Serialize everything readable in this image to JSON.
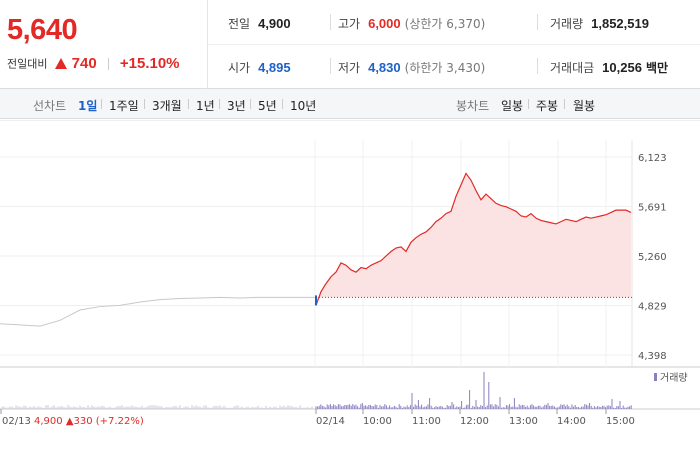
{
  "quote": {
    "current_price": "5,640",
    "change_label": "전일대비",
    "change_amount": "740",
    "change_rate": "+15.10%",
    "prev_close_label": "전일",
    "prev_close": "4,900",
    "high_label": "고가",
    "high": "6,000",
    "upper_limit": "(상한가 6,370)",
    "volume_label": "거래량",
    "volume": "1,852,519",
    "open_label": "시가",
    "open": "4,895",
    "low_label": "저가",
    "low": "4,830",
    "lower_limit": "(하한가 3,430)",
    "amount_label": "거래대금",
    "amount": "10,256",
    "amount_unit": "백만"
  },
  "toolbar": {
    "line_label": "선차트",
    "line_periods": [
      "1일",
      "1주일",
      "3개월",
      "1년",
      "3년",
      "5년",
      "10년"
    ],
    "active_period": "1일",
    "candle_label": "봉차트",
    "candle_periods": [
      "일봉",
      "주봉",
      "월봉"
    ]
  },
  "colors": {
    "up": "#e22926",
    "down": "#1f61c8",
    "prev_day_line": "#c8c8c8",
    "volume_bar": "#8a7fc0",
    "area_fill": "#fbe3e3"
  },
  "chart_data": {
    "type": "line",
    "y_ticks": [
      "6,123",
      "5,691",
      "5,260",
      "4,829",
      "4,398"
    ],
    "ylim": [
      4398,
      6123
    ],
    "x_ticks": [
      "02/13",
      "02/14",
      "10:00",
      "11:00",
      "12:00",
      "13:00",
      "14:00",
      "15:00"
    ],
    "prev_day_summary": {
      "date": "02/13",
      "close": "4,900",
      "change": "330",
      "rate": "(+7.22%)"
    },
    "reference_price": 4900,
    "volume_legend": "거래량",
    "series": [
      {
        "name": "02/13",
        "x": [
          0,
          20,
          40,
          60,
          80,
          100,
          120,
          140,
          160,
          180,
          200,
          220,
          240,
          260,
          280,
          300,
          315
        ],
        "values": [
          4670,
          4660,
          4650,
          4700,
          4790,
          4820,
          4830,
          4860,
          4880,
          4890,
          4895,
          4900,
          4895,
          4900,
          4900,
          4900,
          4900
        ]
      },
      {
        "name": "02/14",
        "x": [
          0,
          5,
          10,
          15,
          20,
          25,
          30,
          35,
          40,
          45,
          50,
          55,
          60,
          65,
          70,
          75,
          80,
          85,
          90,
          95,
          100,
          105,
          110,
          115,
          120,
          125,
          130,
          135,
          140,
          145,
          150,
          155,
          160,
          165,
          170,
          175,
          180,
          185,
          190,
          195,
          200,
          205,
          210,
          215,
          220,
          225,
          230,
          235,
          240,
          245,
          250,
          255,
          260,
          265,
          270,
          275,
          280,
          285,
          290,
          295,
          300,
          305,
          310,
          315
        ],
        "values": [
          4830,
          4950,
          5020,
          5080,
          5120,
          5200,
          5180,
          5140,
          5120,
          5160,
          5150,
          5180,
          5200,
          5220,
          5260,
          5300,
          5330,
          5340,
          5300,
          5380,
          5420,
          5450,
          5470,
          5510,
          5560,
          5590,
          5630,
          5650,
          5780,
          5880,
          5980,
          5920,
          5830,
          5750,
          5800,
          5760,
          5720,
          5700,
          5690,
          5670,
          5650,
          5610,
          5600,
          5630,
          5590,
          5570,
          5560,
          5550,
          5540,
          5560,
          5580,
          5570,
          5560,
          5580,
          5600,
          5590,
          5600,
          5610,
          5620,
          5640,
          5660,
          5660,
          5660,
          5640
        ]
      }
    ]
  }
}
